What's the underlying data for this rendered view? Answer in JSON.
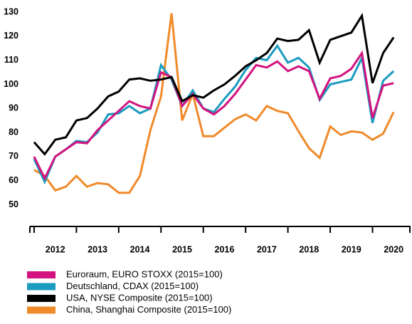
{
  "chart_data": {
    "type": "line",
    "x": [
      2012,
      2012.25,
      2012.5,
      2012.75,
      2013,
      2013.25,
      2013.5,
      2013.75,
      2014,
      2014.25,
      2014.5,
      2014.75,
      2015,
      2015.25,
      2015.5,
      2015.75,
      2016,
      2016.25,
      2016.5,
      2016.75,
      2017,
      2017.25,
      2017.5,
      2017.75,
      2018,
      2018.25,
      2018.5,
      2018.75,
      2019,
      2019.25,
      2019.5,
      2019.75,
      2020,
      2020.25,
      2020.5
    ],
    "xlim": [
      2011.9,
      2020.9
    ],
    "xticks": [
      {
        "value": 2012.5,
        "label": "2012"
      },
      {
        "value": 2013.5,
        "label": "2013"
      },
      {
        "value": 2014.5,
        "label": "2014"
      },
      {
        "value": 2015.5,
        "label": "2015"
      },
      {
        "value": 2016.5,
        "label": "2016"
      },
      {
        "value": 2017.5,
        "label": "2017"
      },
      {
        "value": 2018.5,
        "label": "2018"
      },
      {
        "value": 2019.5,
        "label": "2019"
      },
      {
        "value": 2020.5,
        "label": "2020"
      }
    ],
    "ylim": [
      41,
      130
    ],
    "yticks": [
      50,
      60,
      70,
      80,
      90,
      100,
      110,
      120,
      130
    ],
    "grid": false,
    "series": [
      {
        "name": "Euroraum, EURO STOXX (2015=100)",
        "color": "#d3147f",
        "values": [
          70,
          61,
          70,
          73,
          76,
          75.5,
          81,
          85,
          89,
          93,
          91,
          90,
          105,
          103,
          91,
          96,
          90,
          87.5,
          91,
          96,
          102,
          108,
          107,
          109.5,
          105.5,
          107.5,
          105.5,
          94,
          102.5,
          103.5,
          106.5,
          113,
          86,
          99.5,
          100.5
        ]
      },
      {
        "name": "Deutschland, CDAX (2015=100)",
        "color": "#1a9bbf",
        "values": [
          69,
          59.5,
          70,
          73,
          76.5,
          76,
          80,
          87.5,
          88,
          91,
          88,
          90,
          108,
          102,
          91,
          97.5,
          90,
          88.5,
          94,
          99,
          106,
          111,
          110,
          116,
          109,
          111,
          107,
          93.5,
          100,
          101,
          102,
          111,
          84,
          101.5,
          105.5
        ]
      },
      {
        "name": "USA, NYSE Composite (2015=100)",
        "color": "#000000",
        "values": [
          76,
          71,
          77,
          78,
          85,
          86,
          90,
          95,
          97,
          102,
          102.5,
          101.5,
          102,
          103,
          93,
          95.5,
          94.5,
          97.5,
          100,
          103.5,
          107.5,
          110,
          113,
          119,
          118,
          118.5,
          122.5,
          109,
          118.5,
          120,
          121.5,
          128.5,
          100.5,
          113,
          119.5
        ]
      },
      {
        "name": "China, Shanghai Composite (2015=100)",
        "color": "#ef8a2a",
        "values": [
          64.5,
          62,
          56,
          57.5,
          62,
          57.5,
          59,
          58.5,
          55,
          55,
          62,
          81,
          95,
          129.5,
          85,
          96,
          78.5,
          78.5,
          82,
          85.5,
          87.5,
          85,
          91,
          89,
          88,
          80.5,
          73.5,
          69.5,
          82.5,
          79,
          80.5,
          80,
          77,
          79.5,
          88.5
        ]
      }
    ]
  }
}
